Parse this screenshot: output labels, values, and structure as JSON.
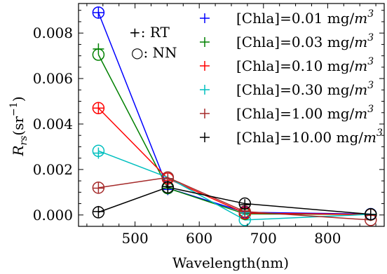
{
  "chart_data": {
    "type": "line",
    "xlabel": "Wavelength(nm)",
    "ylabel_main": "R",
    "ylabel_sub": "rs",
    "ylabel_paren_open": "(sr",
    "ylabel_sup": "−1",
    "ylabel_paren_close": ")",
    "xlim": [
      412,
      888
    ],
    "ylim": [
      -0.0005,
      0.0093
    ],
    "x_ticks": [
      500,
      600,
      700,
      800
    ],
    "y_ticks": [
      0.0,
      0.002,
      0.004,
      0.006,
      0.008
    ],
    "x_tick_labels": [
      "500",
      "600",
      "700",
      "800"
    ],
    "y_tick_labels": [
      "0.000",
      "0.002",
      "0.004",
      "0.006",
      "0.008"
    ],
    "grid": false,
    "legend_position": "top-right",
    "marker_note_rt": "+: RT",
    "marker_note_nn": "○: NN",
    "x": [
      443,
      551,
      671,
      867
    ],
    "series": [
      {
        "name": "[Chla]=0.01 mg/m3",
        "name_main": "[Chla]=0.01 mg/",
        "name_m": "m",
        "name_sup": "3",
        "color": "#0000ff",
        "rt": [
          0.0089,
          0.00112,
          8e-05,
          3e-05
        ],
        "nn": [
          0.0089,
          0.00118,
          0.00012,
          4e-05
        ]
      },
      {
        "name": "[Chla]=0.03 mg/m3",
        "name_main": "[Chla]=0.03 mg/",
        "name_m": "m",
        "name_sup": "3",
        "color": "#008000",
        "rt": [
          0.0073,
          0.00118,
          8e-05,
          2e-05
        ],
        "nn": [
          0.00705,
          0.00118,
          5e-05,
          2e-05
        ]
      },
      {
        "name": "[Chla]=0.10 mg/m3",
        "name_main": "[Chla]=0.10 mg/",
        "name_m": "m",
        "name_sup": "3",
        "color": "#ff0000",
        "rt": [
          0.0047,
          0.00152,
          0.0001,
          3e-05
        ],
        "nn": [
          0.0047,
          0.0016,
          8e-05,
          2e-05
        ]
      },
      {
        "name": "[Chla]=0.30 mg/m3",
        "name_main": "[Chla]=0.30 mg/",
        "name_m": "m",
        "name_sup": "3",
        "color": "#00bfbf",
        "rt": [
          0.00272,
          0.0016,
          0.0001,
          3e-05
        ],
        "nn": [
          0.00282,
          0.00165,
          -0.00022,
          3e-05
        ]
      },
      {
        "name": "[Chla]=1.00 mg/m3",
        "name_main": "[Chla]=1.00 mg/",
        "name_m": "m",
        "name_sup": "3",
        "color": "#a52a2a",
        "rt": [
          0.00118,
          0.0016,
          0.00018,
          -2e-05
        ],
        "nn": [
          0.0012,
          0.00165,
          0.00015,
          -0.00022
        ]
      },
      {
        "name": "[Chla]=10.00 mg/m3",
        "name_main": "[Chla]=10.00 mg/",
        "name_m": "m",
        "name_sup": "3",
        "color": "#000000",
        "rt": [
          0.00015,
          0.00125,
          0.00045,
          2e-05
        ],
        "nn": [
          0.00012,
          0.00122,
          0.0005,
          3e-05
        ]
      }
    ]
  }
}
